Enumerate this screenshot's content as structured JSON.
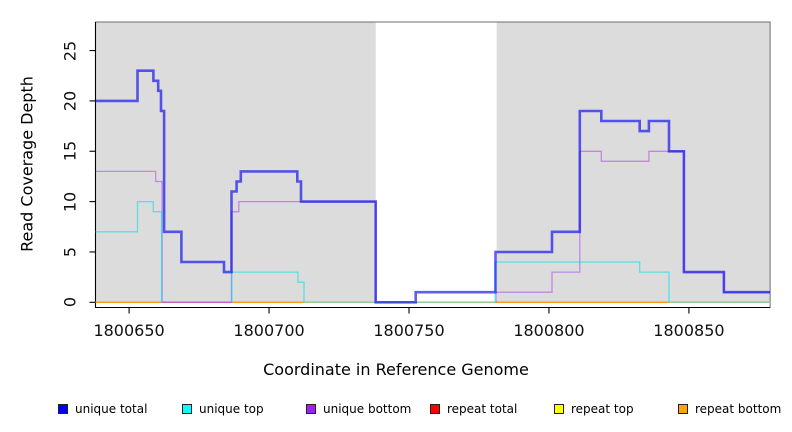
{
  "chart_data": {
    "type": "line",
    "step": "post",
    "title": "",
    "xlabel": "Coordinate in Reference Genome",
    "ylabel": "Read Coverage Depth",
    "xlim": [
      1800638,
      1800879
    ],
    "ylim": [
      0,
      27.8
    ],
    "x_ticks": [
      "1800650",
      "1800700",
      "1800750",
      "1800800",
      "1800850"
    ],
    "x_tick_values": [
      1800650,
      1800700,
      1800750,
      1800800,
      1800850
    ],
    "y_ticks": [
      "0",
      "5",
      "10",
      "15",
      "20",
      "25"
    ],
    "y_tick_values": [
      0,
      5,
      10,
      15,
      20,
      25
    ],
    "grid": false,
    "legend_position": "bottom",
    "plot_background": "#ffffff",
    "shaded_region_color": "#dcdcdc",
    "shaded_regions": [
      {
        "from": 1800638,
        "to": 1800738.1
      },
      {
        "from": 1800781.3,
        "to": 1800879
      }
    ],
    "series": [
      {
        "id": "unique-total",
        "name": "unique total",
        "legend_color": "#0000ff",
        "stroke": "rgba(10,10,240,0.66)",
        "stroke_width": 2.6,
        "points": [
          [
            1800638,
            20
          ],
          [
            1800653,
            23
          ],
          [
            1800658.7,
            22
          ],
          [
            1800660.4,
            21
          ],
          [
            1800661.4,
            19
          ],
          [
            1800662.5,
            7
          ],
          [
            1800668.7,
            4
          ],
          [
            1800683.9,
            3
          ],
          [
            1800686.6,
            11
          ],
          [
            1800688.4,
            12
          ],
          [
            1800689.9,
            13
          ],
          [
            1800710.1,
            12
          ],
          [
            1800711.4,
            10
          ],
          [
            1800738.1,
            0
          ],
          [
            1800752.4,
            1
          ],
          [
            1800780.9,
            5
          ],
          [
            1800801.1,
            7
          ],
          [
            1800811,
            19
          ],
          [
            1800818.7,
            18
          ],
          [
            1800832.4,
            17
          ],
          [
            1800835.7,
            18
          ],
          [
            1800842.9,
            15
          ],
          [
            1800848.2,
            3
          ],
          [
            1800862.5,
            1
          ]
        ]
      },
      {
        "id": "unique-top",
        "name": "unique top",
        "legend_color": "#00ffff",
        "stroke": "rgba(0,225,235,0.6)",
        "stroke_width": 1.3,
        "points": [
          [
            1800638,
            7
          ],
          [
            1800653,
            10
          ],
          [
            1800658.6,
            9
          ],
          [
            1800661.6,
            0
          ],
          [
            1800686.7,
            3
          ],
          [
            1800710.3,
            2
          ],
          [
            1800712.5,
            0
          ],
          [
            1800780.8,
            4
          ],
          [
            1800832.4,
            3
          ],
          [
            1800842.9,
            0
          ]
        ]
      },
      {
        "id": "unique-bottom",
        "name": "unique bottom",
        "legend_color": "#a020f0",
        "stroke": "rgba(160,32,240,0.45)",
        "stroke_width": 1.3,
        "points": [
          [
            1800638,
            13
          ],
          [
            1800659.5,
            12
          ],
          [
            1800661.8,
            0
          ],
          [
            1800686.6,
            9
          ],
          [
            1800689.2,
            10
          ],
          [
            1800738.1,
            0
          ],
          [
            1800781.1,
            1
          ],
          [
            1800801.1,
            3
          ],
          [
            1800811,
            15
          ],
          [
            1800818.7,
            14
          ],
          [
            1800835.7,
            15
          ],
          [
            1800848.2,
            3
          ],
          [
            1800862.5,
            1
          ]
        ]
      },
      {
        "id": "repeat-total",
        "name": "repeat total",
        "legend_color": "#ff0000",
        "stroke": "rgba(230,30,30,0.8)",
        "stroke_width": 1.2,
        "points": [
          [
            1800638,
            0
          ]
        ]
      },
      {
        "id": "repeat-top",
        "name": "repeat top",
        "legend_color": "#ffff00",
        "stroke": "rgba(250,250,60,0.9)",
        "stroke_width": 1.2,
        "points": [
          [
            1800638,
            0
          ]
        ]
      },
      {
        "id": "repeat-bottom",
        "name": "repeat bottom",
        "legend_color": "#ffa500",
        "stroke": "#ff9d14",
        "stroke_width": 1.5,
        "points": [
          [
            1800638,
            0
          ]
        ]
      }
    ],
    "baseline_overlays": [
      {
        "color": "#cc5fc6",
        "from": 1800661.8,
        "to": 1800686.6
      },
      {
        "color": "#93cd9a",
        "from": 1800712.5,
        "to": 1800781
      },
      {
        "color": "#93cd9a",
        "from": 1800842.9,
        "to": 1800879
      }
    ]
  },
  "legend": {
    "items": [
      {
        "label": "unique total",
        "color": "#0000ff"
      },
      {
        "label": "unique top",
        "color": "#00ffff"
      },
      {
        "label": "unique bottom",
        "color": "#a020f0"
      },
      {
        "label": "repeat total",
        "color": "#ff0000"
      },
      {
        "label": "repeat top",
        "color": "#ffff00"
      },
      {
        "label": "repeat bottom",
        "color": "#ffa500"
      }
    ]
  }
}
